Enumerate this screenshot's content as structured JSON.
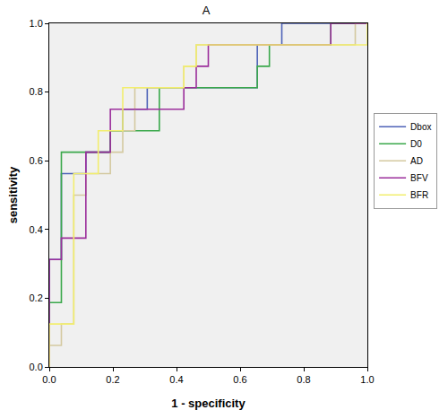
{
  "chart_data": {
    "type": "line",
    "title": "A",
    "x_label": "1 - specificity",
    "y_label": "sensitivity",
    "xlim": [
      0,
      1
    ],
    "ylim": [
      0,
      1
    ],
    "xticks": [
      {
        "value": 0,
        "label": "0.0"
      },
      {
        "value": 0.2,
        "label": "0.2"
      },
      {
        "value": 0.4,
        "label": "0.4"
      },
      {
        "value": 0.6,
        "label": "0.6"
      },
      {
        "value": 0.8,
        "label": "0.8"
      },
      {
        "value": 1,
        "label": "1.0"
      }
    ],
    "yticks": [
      {
        "value": 0,
        "label": "0.0"
      },
      {
        "value": 0.2,
        "label": "0.2"
      },
      {
        "value": 0.4,
        "label": "0.4"
      },
      {
        "value": 0.6,
        "label": "0.6"
      },
      {
        "value": 0.8,
        "label": "0.8"
      },
      {
        "value": 1,
        "label": "1.0"
      }
    ],
    "grid": false,
    "legend": "right",
    "series": [
      {
        "name": "Dbox",
        "color": "#4e63b8",
        "x": [
          0,
          0,
          0.038,
          0.038,
          0.115,
          0.115,
          0.192,
          0.192,
          0.231,
          0.231,
          0.308,
          0.308,
          0.654,
          0.654,
          0.731,
          0.731,
          1
        ],
        "values": [
          0,
          0.3125,
          0.3125,
          0.5625,
          0.5625,
          0.625,
          0.625,
          0.6875,
          0.6875,
          0.75,
          0.75,
          0.8125,
          0.8125,
          0.9375,
          0.9375,
          1,
          1
        ]
      },
      {
        "name": "D0",
        "color": "#3aa84b",
        "x": [
          0,
          0,
          0.038,
          0.038,
          0.192,
          0.192,
          0.346,
          0.346,
          0.654,
          0.654,
          0.692,
          0.692,
          0.885,
          0.885,
          1
        ],
        "values": [
          0,
          0.1875,
          0.1875,
          0.625,
          0.625,
          0.6875,
          0.6875,
          0.8125,
          0.8125,
          0.875,
          0.875,
          0.9375,
          0.9375,
          1,
          1
        ]
      },
      {
        "name": "AD",
        "color": "#d4c9a0",
        "x": [
          0,
          0,
          0.038,
          0.038,
          0.077,
          0.077,
          0.115,
          0.115,
          0.192,
          0.192,
          0.231,
          0.231,
          0.269,
          0.269,
          0.423,
          0.423,
          0.462,
          0.462,
          0.962,
          0.962,
          1
        ],
        "values": [
          0,
          0.0625,
          0.0625,
          0.125,
          0.125,
          0.5,
          0.5,
          0.5625,
          0.5625,
          0.625,
          0.625,
          0.6875,
          0.6875,
          0.8125,
          0.8125,
          0.875,
          0.875,
          0.9375,
          0.9375,
          1,
          1
        ]
      },
      {
        "name": "BFV",
        "color": "#9b2e9b",
        "x": [
          0,
          0,
          0.038,
          0.038,
          0.115,
          0.115,
          0.192,
          0.192,
          0.423,
          0.423,
          0.462,
          0.462,
          0.5,
          0.5,
          0.885,
          0.885,
          1
        ],
        "values": [
          0,
          0.3125,
          0.3125,
          0.375,
          0.375,
          0.625,
          0.625,
          0.75,
          0.75,
          0.8125,
          0.8125,
          0.875,
          0.875,
          0.9375,
          0.9375,
          1,
          1
        ]
      },
      {
        "name": "BFR",
        "color": "#f2ee6e",
        "x": [
          0,
          0,
          0.077,
          0.077,
          0.154,
          0.154,
          0.231,
          0.231,
          0.423,
          0.423,
          0.462,
          0.462,
          1,
          1
        ],
        "values": [
          0,
          0.125,
          0.125,
          0.5625,
          0.5625,
          0.6875,
          0.6875,
          0.8125,
          0.8125,
          0.875,
          0.875,
          0.9375,
          0.9375,
          1
        ]
      }
    ]
  }
}
